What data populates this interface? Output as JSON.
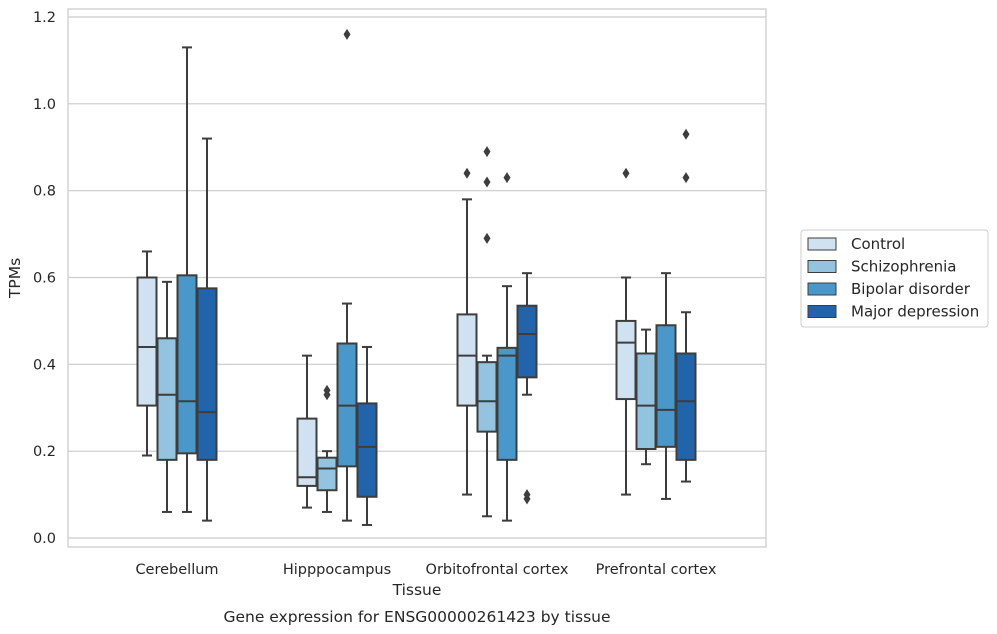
{
  "chart_data": {
    "type": "box",
    "xlabel": "Tissue",
    "ylabel": "TPMs",
    "caption": "Gene expression for ENSG00000261423 by tissue",
    "ylim": [
      -0.02,
      1.22
    ],
    "yticks": [
      0.0,
      0.2,
      0.4,
      0.6,
      0.8,
      1.0,
      1.2
    ],
    "ytick_labels": [
      "0.0",
      "0.2",
      "0.4",
      "0.6",
      "0.8",
      "1.0",
      "1.2"
    ],
    "grid": "horizontal",
    "legend_position": "right",
    "categories": [
      "Cerebellum",
      "Hipppocampus",
      "Orbitofrontal cortex",
      "Prefrontal cortex"
    ],
    "series": [
      {
        "name": "Control",
        "color": "#d0e1f1",
        "boxes": [
          {
            "whislo": 0.19,
            "q1": 0.305,
            "med": 0.44,
            "q3": 0.6,
            "whishi": 0.66,
            "fliers": []
          },
          {
            "whislo": 0.07,
            "q1": 0.12,
            "med": 0.14,
            "q3": 0.275,
            "whishi": 0.42,
            "fliers": []
          },
          {
            "whislo": 0.1,
            "q1": 0.305,
            "med": 0.42,
            "q3": 0.515,
            "whishi": 0.78,
            "fliers": [
              0.84
            ]
          },
          {
            "whislo": 0.1,
            "q1": 0.32,
            "med": 0.45,
            "q3": 0.5,
            "whishi": 0.6,
            "fliers": [
              0.84
            ]
          }
        ]
      },
      {
        "name": "Schizophrenia",
        "color": "#93c3df",
        "boxes": [
          {
            "whislo": 0.06,
            "q1": 0.18,
            "med": 0.33,
            "q3": 0.46,
            "whishi": 0.59,
            "fliers": []
          },
          {
            "whislo": 0.06,
            "q1": 0.11,
            "med": 0.16,
            "q3": 0.185,
            "whishi": 0.2,
            "fliers": [
              0.33,
              0.34
            ]
          },
          {
            "whislo": 0.05,
            "q1": 0.245,
            "med": 0.315,
            "q3": 0.405,
            "whishi": 0.42,
            "fliers": [
              0.69,
              0.82,
              0.89
            ]
          },
          {
            "whislo": 0.17,
            "q1": 0.205,
            "med": 0.305,
            "q3": 0.425,
            "whishi": 0.48,
            "fliers": []
          }
        ]
      },
      {
        "name": "Bipolar disorder",
        "color": "#4a98c9",
        "boxes": [
          {
            "whislo": 0.06,
            "q1": 0.195,
            "med": 0.315,
            "q3": 0.605,
            "whishi": 1.13,
            "fliers": []
          },
          {
            "whislo": 0.04,
            "q1": 0.165,
            "med": 0.305,
            "q3": 0.448,
            "whishi": 0.54,
            "fliers": [
              1.16
            ]
          },
          {
            "whislo": 0.04,
            "q1": 0.18,
            "med": 0.42,
            "q3": 0.438,
            "whishi": 0.58,
            "fliers": [
              0.83
            ]
          },
          {
            "whislo": 0.09,
            "q1": 0.21,
            "med": 0.295,
            "q3": 0.49,
            "whishi": 0.61,
            "fliers": []
          }
        ]
      },
      {
        "name": "Major depression",
        "color": "#2264aa",
        "boxes": [
          {
            "whislo": 0.04,
            "q1": 0.18,
            "med": 0.29,
            "q3": 0.575,
            "whishi": 0.92,
            "fliers": []
          },
          {
            "whislo": 0.03,
            "q1": 0.095,
            "med": 0.21,
            "q3": 0.31,
            "whishi": 0.44,
            "fliers": []
          },
          {
            "whislo": 0.33,
            "q1": 0.37,
            "med": 0.47,
            "q3": 0.535,
            "whishi": 0.61,
            "fliers": [
              0.09,
              0.1
            ]
          },
          {
            "whislo": 0.13,
            "q1": 0.18,
            "med": 0.315,
            "q3": 0.425,
            "whishi": 0.52,
            "fliers": [
              0.83,
              0.93
            ]
          }
        ]
      }
    ]
  }
}
